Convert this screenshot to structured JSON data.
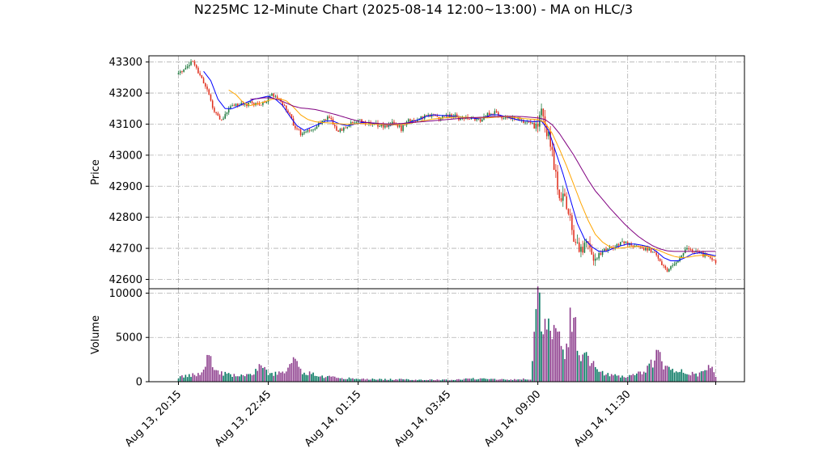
{
  "chart_data": {
    "type": "candlestick",
    "title": "N225MC 12-Minute Chart (2025-08-14 12:00~13:00) - MA on HLC/3",
    "price_panel": {
      "ylabel": "Price",
      "ylim": [
        42570,
        43320
      ],
      "yticks": [
        "42600",
        "42700",
        "42800",
        "42900",
        "43000",
        "43100",
        "43200",
        "43300"
      ],
      "yvalues": [
        42600,
        42700,
        42800,
        42900,
        43000,
        43100,
        43200,
        43300
      ],
      "grid": true
    },
    "volume_panel": {
      "ylabel": "Volume",
      "ylim": [
        0,
        10500
      ],
      "yticks": [
        "0",
        "5000",
        "10000"
      ],
      "yvalues": [
        0,
        5000,
        10000
      ],
      "grid": true
    },
    "x_axis": {
      "bar_count": 300,
      "tick_labels": [
        "Aug 13, 20:15",
        "Aug 13, 22:45",
        "Aug 14, 01:15",
        "Aug 14, 03:45",
        "Aug 14, 09:00",
        "Aug 14, 11:30"
      ],
      "tick_index": [
        0,
        50,
        100,
        150,
        200,
        250
      ]
    },
    "price_path": [
      [
        0,
        43260
      ],
      [
        4,
        43285
      ],
      [
        8,
        43300
      ],
      [
        12,
        43260
      ],
      [
        16,
        43210
      ],
      [
        20,
        43140
      ],
      [
        24,
        43110
      ],
      [
        28,
        43150
      ],
      [
        32,
        43165
      ],
      [
        36,
        43160
      ],
      [
        40,
        43170
      ],
      [
        44,
        43160
      ],
      [
        48,
        43170
      ],
      [
        52,
        43200
      ],
      [
        56,
        43180
      ],
      [
        60,
        43150
      ],
      [
        64,
        43100
      ],
      [
        68,
        43070
      ],
      [
        72,
        43080
      ],
      [
        76,
        43090
      ],
      [
        80,
        43110
      ],
      [
        84,
        43120
      ],
      [
        88,
        43080
      ],
      [
        92,
        43085
      ],
      [
        96,
        43100
      ],
      [
        100,
        43110
      ],
      [
        104,
        43105
      ],
      [
        108,
        43100
      ],
      [
        112,
        43095
      ],
      [
        116,
        43090
      ],
      [
        120,
        43105
      ],
      [
        124,
        43085
      ],
      [
        128,
        43110
      ],
      [
        132,
        43115
      ],
      [
        136,
        43120
      ],
      [
        140,
        43130
      ],
      [
        144,
        43120
      ],
      [
        148,
        43125
      ],
      [
        152,
        43130
      ],
      [
        156,
        43120
      ],
      [
        160,
        43120
      ],
      [
        164,
        43115
      ],
      [
        168,
        43110
      ],
      [
        172,
        43130
      ],
      [
        176,
        43140
      ],
      [
        180,
        43125
      ],
      [
        184,
        43120
      ],
      [
        188,
        43115
      ],
      [
        192,
        43110
      ],
      [
        196,
        43110
      ],
      [
        199,
        43100
      ],
      [
        200,
        43090
      ],
      [
        202,
        43150
      ],
      [
        204,
        43100
      ],
      [
        206,
        43060
      ],
      [
        208,
        43000
      ],
      [
        210,
        42930
      ],
      [
        212,
        42880
      ],
      [
        214,
        42860
      ],
      [
        216,
        42840
      ],
      [
        218,
        42800
      ],
      [
        220,
        42740
      ],
      [
        222,
        42700
      ],
      [
        224,
        42690
      ],
      [
        226,
        42700
      ],
      [
        228,
        42720
      ],
      [
        230,
        42680
      ],
      [
        232,
        42660
      ],
      [
        234,
        42680
      ],
      [
        236,
        42690
      ],
      [
        240,
        42700
      ],
      [
        244,
        42710
      ],
      [
        248,
        42720
      ],
      [
        252,
        42710
      ],
      [
        256,
        42700
      ],
      [
        260,
        42700
      ],
      [
        264,
        42690
      ],
      [
        268,
        42660
      ],
      [
        272,
        42630
      ],
      [
        276,
        42650
      ],
      [
        280,
        42680
      ],
      [
        284,
        42700
      ],
      [
        288,
        42690
      ],
      [
        292,
        42680
      ],
      [
        296,
        42670
      ],
      [
        299,
        42660
      ]
    ],
    "volume_path": [
      [
        0,
        500
      ],
      [
        10,
        800
      ],
      [
        14,
        1200
      ],
      [
        16,
        3000
      ],
      [
        18,
        3300
      ],
      [
        20,
        1200
      ],
      [
        30,
        700
      ],
      [
        40,
        700
      ],
      [
        44,
        1500
      ],
      [
        46,
        1800
      ],
      [
        50,
        900
      ],
      [
        60,
        1000
      ],
      [
        64,
        2500
      ],
      [
        68,
        1200
      ],
      [
        80,
        600
      ],
      [
        100,
        300
      ],
      [
        150,
        200
      ],
      [
        170,
        400
      ],
      [
        180,
        250
      ],
      [
        196,
        300
      ],
      [
        198,
        5000
      ],
      [
        200,
        10000
      ],
      [
        202,
        6000
      ],
      [
        204,
        5500
      ],
      [
        206,
        7500
      ],
      [
        208,
        4000
      ],
      [
        210,
        6000
      ],
      [
        212,
        4500
      ],
      [
        214,
        3000
      ],
      [
        216,
        3500
      ],
      [
        218,
        7000
      ],
      [
        220,
        8500
      ],
      [
        222,
        3500
      ],
      [
        226,
        3000
      ],
      [
        228,
        2500
      ],
      [
        230,
        2000
      ],
      [
        234,
        1200
      ],
      [
        240,
        700
      ],
      [
        250,
        600
      ],
      [
        260,
        1200
      ],
      [
        264,
        2200
      ],
      [
        266,
        4000
      ],
      [
        270,
        1500
      ],
      [
        280,
        1200
      ],
      [
        290,
        800
      ],
      [
        296,
        1600
      ],
      [
        299,
        700
      ]
    ],
    "ma_fast": [
      [
        14,
        43270
      ],
      [
        18,
        43240
      ],
      [
        22,
        43180
      ],
      [
        26,
        43150
      ],
      [
        30,
        43150
      ],
      [
        34,
        43160
      ],
      [
        38,
        43170
      ],
      [
        42,
        43180
      ],
      [
        46,
        43185
      ],
      [
        50,
        43190
      ],
      [
        54,
        43180
      ],
      [
        58,
        43160
      ],
      [
        62,
        43125
      ],
      [
        66,
        43095
      ],
      [
        70,
        43080
      ],
      [
        74,
        43090
      ],
      [
        78,
        43100
      ],
      [
        82,
        43110
      ],
      [
        86,
        43110
      ],
      [
        90,
        43100
      ],
      [
        94,
        43095
      ],
      [
        98,
        43100
      ],
      [
        102,
        43105
      ],
      [
        106,
        43105
      ],
      [
        110,
        43100
      ],
      [
        114,
        43098
      ],
      [
        118,
        43096
      ],
      [
        122,
        43100
      ],
      [
        126,
        43102
      ],
      [
        130,
        43108
      ],
      [
        134,
        43115
      ],
      [
        138,
        43125
      ],
      [
        142,
        43130
      ],
      [
        146,
        43128
      ],
      [
        150,
        43127
      ],
      [
        154,
        43125
      ],
      [
        158,
        43122
      ],
      [
        162,
        43120
      ],
      [
        166,
        43118
      ],
      [
        170,
        43120
      ],
      [
        174,
        43130
      ],
      [
        178,
        43130
      ],
      [
        182,
        43124
      ],
      [
        186,
        43118
      ],
      [
        190,
        43112
      ],
      [
        194,
        43110
      ],
      [
        198,
        43108
      ],
      [
        202,
        43110
      ],
      [
        206,
        43080
      ],
      [
        210,
        43010
      ],
      [
        214,
        42940
      ],
      [
        218,
        42860
      ],
      [
        222,
        42780
      ],
      [
        226,
        42730
      ],
      [
        230,
        42705
      ],
      [
        234,
        42690
      ],
      [
        238,
        42690
      ],
      [
        242,
        42700
      ],
      [
        246,
        42708
      ],
      [
        250,
        42714
      ],
      [
        254,
        42714
      ],
      [
        258,
        42710
      ],
      [
        262,
        42705
      ],
      [
        266,
        42690
      ],
      [
        270,
        42670
      ],
      [
        274,
        42660
      ],
      [
        278,
        42660
      ],
      [
        282,
        42670
      ],
      [
        286,
        42682
      ],
      [
        290,
        42686
      ],
      [
        294,
        42682
      ],
      [
        299,
        42676
      ]
    ],
    "ma_mid": [
      [
        28,
        43210
      ],
      [
        32,
        43195
      ],
      [
        36,
        43170
      ],
      [
        40,
        43160
      ],
      [
        44,
        43165
      ],
      [
        48,
        43172
      ],
      [
        52,
        43180
      ],
      [
        56,
        43182
      ],
      [
        60,
        43175
      ],
      [
        64,
        43155
      ],
      [
        68,
        43130
      ],
      [
        72,
        43115
      ],
      [
        76,
        43108
      ],
      [
        80,
        43105
      ],
      [
        84,
        43104
      ],
      [
        88,
        43102
      ],
      [
        92,
        43100
      ],
      [
        96,
        43100
      ],
      [
        100,
        43102
      ],
      [
        104,
        43102
      ],
      [
        108,
        43100
      ],
      [
        112,
        43099
      ],
      [
        116,
        43098
      ],
      [
        120,
        43098
      ],
      [
        124,
        43099
      ],
      [
        128,
        43102
      ],
      [
        132,
        43106
      ],
      [
        136,
        43110
      ],
      [
        140,
        43115
      ],
      [
        144,
        43118
      ],
      [
        148,
        43120
      ],
      [
        152,
        43122
      ],
      [
        156,
        43123
      ],
      [
        160,
        43122
      ],
      [
        164,
        43121
      ],
      [
        168,
        43120
      ],
      [
        172,
        43120
      ],
      [
        176,
        43122
      ],
      [
        180,
        43124
      ],
      [
        184,
        43123
      ],
      [
        188,
        43121
      ],
      [
        192,
        43118
      ],
      [
        196,
        43116
      ],
      [
        200,
        43115
      ],
      [
        204,
        43105
      ],
      [
        208,
        43070
      ],
      [
        212,
        43020
      ],
      [
        216,
        42965
      ],
      [
        220,
        42905
      ],
      [
        224,
        42845
      ],
      [
        228,
        42790
      ],
      [
        232,
        42745
      ],
      [
        236,
        42720
      ],
      [
        240,
        42705
      ],
      [
        244,
        42700
      ],
      [
        248,
        42702
      ],
      [
        252,
        42705
      ],
      [
        256,
        42706
      ],
      [
        260,
        42705
      ],
      [
        264,
        42700
      ],
      [
        268,
        42692
      ],
      [
        272,
        42682
      ],
      [
        276,
        42674
      ],
      [
        280,
        42670
      ],
      [
        284,
        42672
      ],
      [
        288,
        42676
      ],
      [
        292,
        42678
      ],
      [
        296,
        42676
      ],
      [
        299,
        42672
      ]
    ],
    "ma_slow": [
      [
        40,
        43180
      ],
      [
        44,
        43182
      ],
      [
        48,
        43185
      ],
      [
        52,
        43184
      ],
      [
        56,
        43178
      ],
      [
        60,
        43168
      ],
      [
        64,
        43158
      ],
      [
        68,
        43152
      ],
      [
        72,
        43150
      ],
      [
        76,
        43147
      ],
      [
        80,
        43142
      ],
      [
        84,
        43136
      ],
      [
        88,
        43130
      ],
      [
        92,
        43123
      ],
      [
        96,
        43116
      ],
      [
        100,
        43110
      ],
      [
        104,
        43106
      ],
      [
        108,
        43104
      ],
      [
        112,
        43102
      ],
      [
        116,
        43101
      ],
      [
        120,
        43101
      ],
      [
        124,
        43102
      ],
      [
        128,
        43104
      ],
      [
        132,
        43106
      ],
      [
        136,
        43108
      ],
      [
        140,
        43110
      ],
      [
        144,
        43112
      ],
      [
        148,
        43114
      ],
      [
        152,
        43116
      ],
      [
        156,
        43118
      ],
      [
        160,
        43120
      ],
      [
        164,
        43121
      ],
      [
        168,
        43122
      ],
      [
        172,
        43123
      ],
      [
        176,
        43124
      ],
      [
        180,
        43125
      ],
      [
        184,
        43125
      ],
      [
        188,
        43125
      ],
      [
        192,
        43124
      ],
      [
        196,
        43122
      ],
      [
        200,
        43120
      ],
      [
        204,
        43115
      ],
      [
        208,
        43098
      ],
      [
        212,
        43070
      ],
      [
        216,
        43035
      ],
      [
        220,
        43000
      ],
      [
        224,
        42960
      ],
      [
        228,
        42920
      ],
      [
        232,
        42885
      ],
      [
        236,
        42858
      ],
      [
        240,
        42830
      ],
      [
        244,
        42805
      ],
      [
        248,
        42780
      ],
      [
        252,
        42758
      ],
      [
        256,
        42738
      ],
      [
        260,
        42722
      ],
      [
        264,
        42708
      ],
      [
        268,
        42698
      ],
      [
        272,
        42692
      ],
      [
        276,
        42690
      ],
      [
        280,
        42690
      ],
      [
        284,
        42690
      ],
      [
        288,
        42690
      ],
      [
        292,
        42690
      ],
      [
        296,
        42690
      ],
      [
        299,
        42690
      ]
    ],
    "colors": {
      "up": "#1f7a3f",
      "down": "#e0301e",
      "ma_fast": "#0000ff",
      "ma_mid": "#ffa500",
      "ma_slow": "#800080",
      "volume_up": "#00755e",
      "volume_down": "#8b3a8b"
    }
  }
}
